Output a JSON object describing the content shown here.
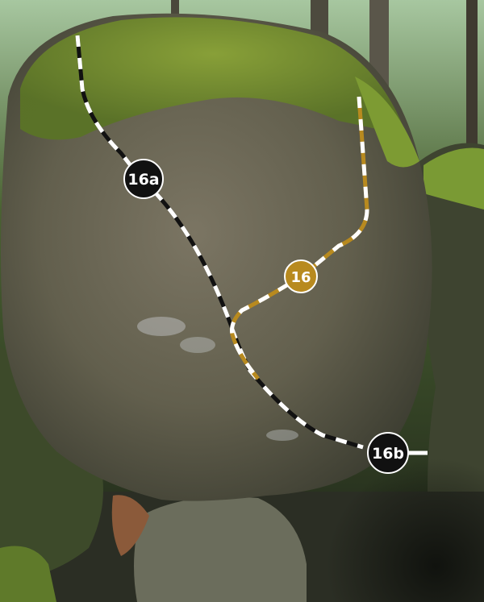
{
  "routes": [
    {
      "id": "16a",
      "label": "16a",
      "color": "#111111",
      "stripe": "#ffffff"
    },
    {
      "id": "16",
      "label": "16",
      "color": "#b88a1f",
      "stripe": "#ffffff"
    },
    {
      "id": "16b",
      "label": "16b",
      "color": "#111111",
      "stripe": "#ffffff"
    }
  ],
  "colors": {
    "sky": "#cfe3d6",
    "forest_dark": "#2c3a22",
    "moss": "#6f8f2e",
    "rock": "#6e6a58",
    "shadow": "#1a1c16"
  }
}
